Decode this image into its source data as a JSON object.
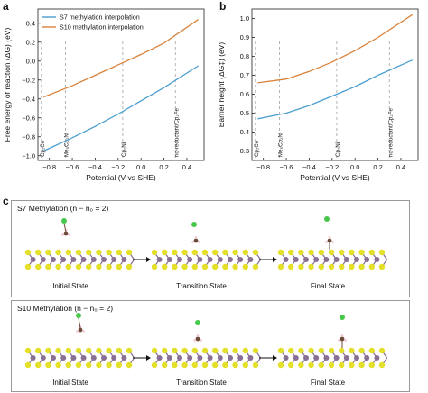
{
  "panels": {
    "a": "a",
    "b": "b",
    "c": "c"
  },
  "chart_data": [
    {
      "type": "line",
      "panel": "a",
      "x_tick_labels": [
        "−0.8",
        "−0.6",
        "−0.4",
        "−0.2",
        "0.0",
        "0.2",
        "0.4"
      ],
      "y_tick_labels": [
        "−1.0",
        "−0.8",
        "−0.6",
        "−0.4",
        "−0.2",
        "0.0",
        "0.2",
        "0.4"
      ],
      "xlabel": "Potential (V vs SHE)",
      "ylabel": "Free energy of reaction (ΔG) (eV)",
      "xlim": [
        -0.9,
        0.55
      ],
      "ylim": [
        -1.05,
        0.55
      ],
      "x_ticks": [
        -0.8,
        -0.6,
        -0.4,
        -0.2,
        0.0,
        0.2,
        0.4
      ],
      "y_ticks": [
        -1.0,
        -0.8,
        -0.6,
        -0.4,
        -0.2,
        0.0,
        0.2,
        0.4
      ],
      "legend_position": "top-left",
      "series": [
        {
          "name": "S7 methylation interpolation",
          "color": "#4a9ed0",
          "x": [
            -0.85,
            -0.6,
            -0.4,
            -0.2,
            0.0,
            0.2,
            0.5
          ],
          "y": [
            -0.95,
            -0.81,
            -0.69,
            -0.56,
            -0.42,
            -0.28,
            -0.05
          ]
        },
        {
          "name": "S10 methylation interpolation",
          "color": "#d9823b",
          "x": [
            -0.85,
            -0.6,
            -0.4,
            -0.2,
            0.0,
            0.2,
            0.5
          ],
          "y": [
            -0.38,
            -0.26,
            -0.15,
            -0.04,
            0.07,
            0.19,
            0.44
          ]
        }
      ],
      "reference_lines": [
        {
          "x": -0.87,
          "label": "Cp₂Co"
        },
        {
          "x": -0.66,
          "label": "Me₅Cp₂Ni"
        },
        {
          "x": -0.16,
          "label": "Cp₂Ni"
        },
        {
          "x": 0.3,
          "label": "no-reductant/Cp₂Fe"
        }
      ]
    },
    {
      "type": "line",
      "panel": "b",
      "x_tick_labels": [
        "−0.8",
        "−0.6",
        "−0.4",
        "−0.2",
        "0.0",
        "0.2",
        "0.4"
      ],
      "y_tick_labels": [
        "0.3",
        "0.4",
        "0.5",
        "0.6",
        "0.7",
        "0.8",
        "0.9",
        "1.0"
      ],
      "xlabel": "Potential (V vs SHE)",
      "ylabel": "Barrier height (ΔG‡) (eV)",
      "xlim": [
        -0.9,
        0.55
      ],
      "ylim": [
        0.25,
        1.05
      ],
      "x_ticks": [
        -0.8,
        -0.6,
        -0.4,
        -0.2,
        0.0,
        0.2,
        0.4
      ],
      "y_ticks": [
        0.3,
        0.4,
        0.5,
        0.6,
        0.7,
        0.8,
        0.9,
        1.0
      ],
      "series": [
        {
          "name": "S7",
          "color": "#4a9ed0",
          "x": [
            -0.85,
            -0.6,
            -0.4,
            -0.2,
            0.0,
            0.2,
            0.5
          ],
          "y": [
            0.47,
            0.5,
            0.54,
            0.59,
            0.64,
            0.7,
            0.78
          ]
        },
        {
          "name": "S10",
          "color": "#d9823b",
          "x": [
            -0.85,
            -0.6,
            -0.4,
            -0.2,
            0.0,
            0.2,
            0.5
          ],
          "y": [
            0.66,
            0.68,
            0.72,
            0.77,
            0.83,
            0.9,
            1.02
          ]
        }
      ],
      "reference_lines": [
        {
          "x": -0.87,
          "label": "Cp₂Co"
        },
        {
          "x": -0.66,
          "label": "Me₅Cp₂Ni"
        },
        {
          "x": -0.16,
          "label": "Cp₂Ni"
        },
        {
          "x": 0.3,
          "label": "no-reductant/Cp₂Fe"
        }
      ]
    }
  ],
  "panel_c": {
    "boxes": [
      {
        "title": "S7 Methylation (n − n₀ = 2)",
        "states": [
          "Initial State",
          "Transition State",
          "Final State"
        ]
      },
      {
        "title": "S10 Methylation (n − n₀ = 2)",
        "states": [
          "Initial State",
          "Transition State",
          "Final State"
        ]
      }
    ],
    "colors": {
      "sulfur": "#e4e02a",
      "metal": "#8a6f94",
      "chlorine": "#47c84a",
      "carbon": "#6b4a3a",
      "hydrogen": "#f1c9d2"
    }
  }
}
